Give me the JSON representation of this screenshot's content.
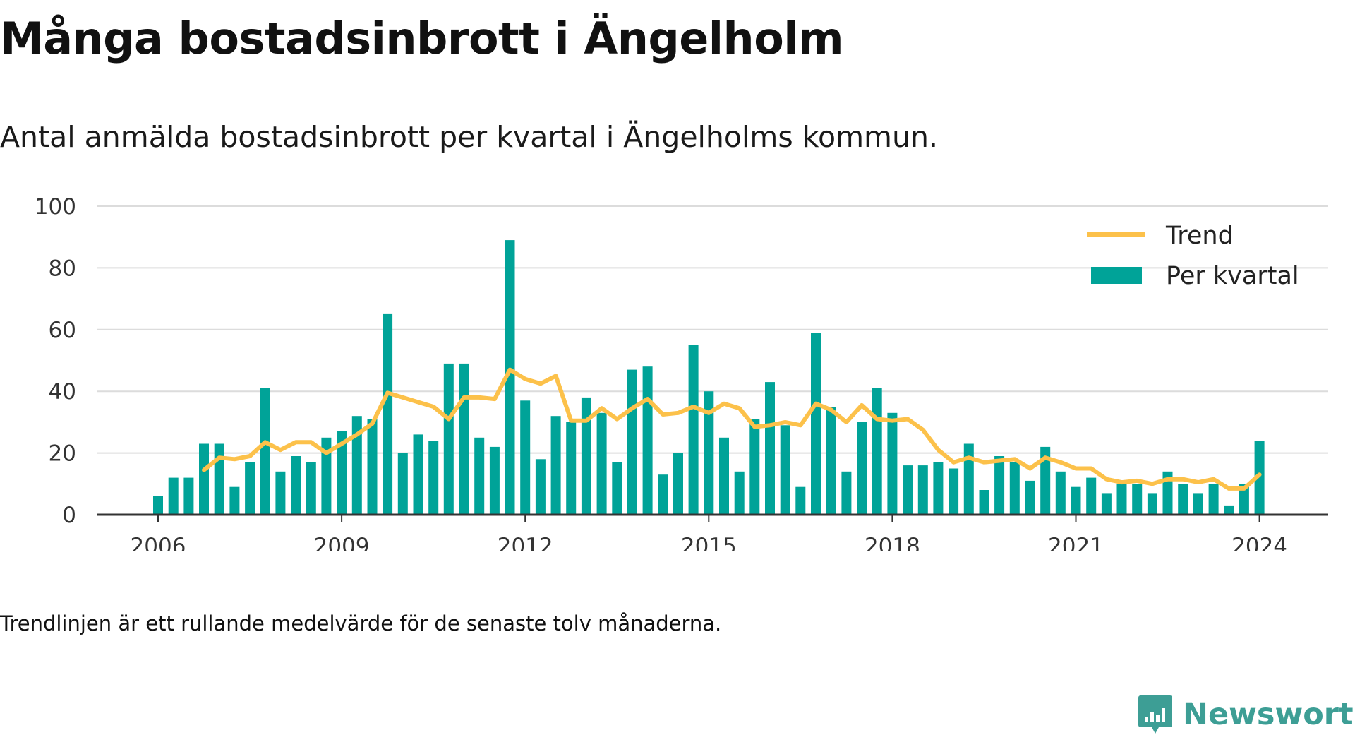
{
  "title": "Många bostadsinbrott i Ängelholm",
  "subtitle": "Antal anmälda bostadsinbrott per kvartal i Ängelholms kommun.",
  "note": "Trendlinjen är ett rullande medelvärde för de senaste tolv månaderna.",
  "brand": {
    "name": "Newsworthy",
    "icon": "newsworthy-logo-icon",
    "color": "#3d9e95"
  },
  "colors": {
    "bars": "#00a398",
    "trend": "#fcc14a",
    "grid": "#dcdcdc",
    "axis": "#333333"
  },
  "chart_data": {
    "type": "bar",
    "title": "Många bostadsinbrott i Ängelholm",
    "subtitle": "Antal anmälda bostadsinbrott per kvartal i Ängelholms kommun.",
    "xlabel": "",
    "ylabel": "",
    "ylim": [
      0,
      100
    ],
    "yticks": [
      0,
      20,
      40,
      60,
      80,
      100
    ],
    "xticks": [
      "2006",
      "2009",
      "2012",
      "2015",
      "2018",
      "2021",
      "2024"
    ],
    "grid": true,
    "legend_position": "top-right",
    "x_start": 2006.0,
    "x_step": 0.25,
    "series": [
      {
        "name": "Per kvartal",
        "type": "bar",
        "color": "#00a398",
        "values": [
          6,
          12,
          12,
          23,
          23,
          9,
          17,
          41,
          14,
          19,
          17,
          25,
          27,
          32,
          31,
          65,
          20,
          26,
          24,
          49,
          49,
          25,
          22,
          89,
          37,
          18,
          32,
          30,
          38,
          33,
          17,
          47,
          48,
          13,
          20,
          55,
          40,
          25,
          14,
          31,
          43,
          29,
          9,
          59,
          35,
          14,
          30,
          41,
          33,
          16,
          16,
          17,
          15,
          23,
          8,
          19,
          17,
          11,
          22,
          14,
          9,
          12,
          7,
          10,
          10,
          7,
          14,
          10,
          7,
          10,
          3,
          10,
          24
        ]
      },
      {
        "name": "Trend",
        "type": "line",
        "color": "#fcc14a",
        "start_index": 3,
        "values": [
          14.5,
          18.5,
          18,
          19,
          23.5,
          21,
          23.5,
          23.5,
          20,
          23,
          26,
          29.5,
          39.5,
          38,
          36.5,
          35,
          31,
          38,
          38,
          37.5,
          47,
          44,
          42.5,
          45,
          30.5,
          30.5,
          34.5,
          31,
          34.5,
          37.5,
          32.5,
          33,
          35,
          33,
          36,
          34.5,
          28.5,
          29,
          30,
          29,
          36,
          34,
          30,
          35.5,
          31,
          30.5,
          31,
          27.5,
          21,
          17,
          18.5,
          17,
          17.5,
          18,
          15,
          18.5,
          17,
          15,
          15,
          11.5,
          10.5,
          11,
          10,
          11.5,
          11.5,
          10.5,
          11.5,
          8.5,
          8.5,
          13
        ]
      }
    ]
  }
}
